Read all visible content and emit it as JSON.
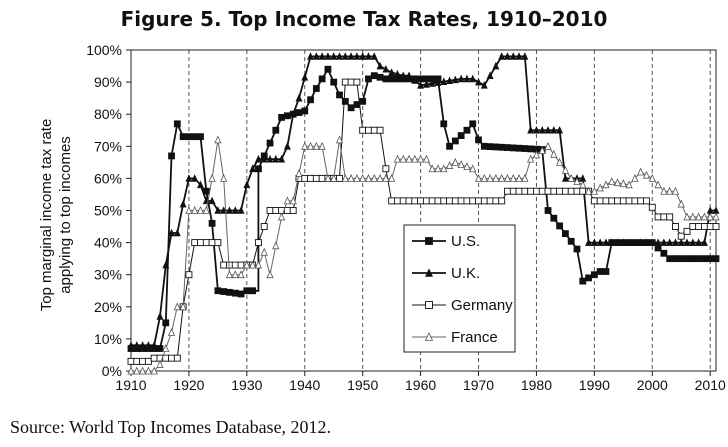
{
  "chart_data": {
    "type": "line",
    "title": "Figure 5.  Top Income Tax Rates, 1910–2010",
    "ylabel_line1": "Top marginal income tax rate",
    "ylabel_line2": "applying to top incomes",
    "xlim": [
      1910,
      2011
    ],
    "ylim": [
      0,
      100
    ],
    "x_ticks": [
      1910,
      1920,
      1930,
      1940,
      1950,
      1960,
      1970,
      1980,
      1990,
      2000,
      2010
    ],
    "y_ticks": [
      0,
      10,
      20,
      30,
      40,
      50,
      60,
      70,
      80,
      90,
      100
    ],
    "y_tick_labels": [
      "0%",
      "10%",
      "20%",
      "30%",
      "40%",
      "50%",
      "60%",
      "70%",
      "80%",
      "90%",
      "100%"
    ],
    "grid": "vertical dashed at each decade",
    "legend_position": "center-right",
    "series": [
      {
        "name": "U.S.",
        "marker": "filled-square",
        "color": "#111111",
        "points": [
          [
            1910,
            7
          ],
          [
            1913,
            7
          ],
          [
            1915,
            7
          ],
          [
            1916,
            15
          ],
          [
            1917,
            67
          ],
          [
            1918,
            77
          ],
          [
            1919,
            73
          ],
          [
            1922,
            73
          ],
          [
            1923,
            56
          ],
          [
            1924,
            46
          ],
          [
            1925,
            25
          ],
          [
            1929,
            24
          ],
          [
            1930,
            25
          ],
          [
            1932,
            25
          ],
          [
            1932,
            63
          ],
          [
            1936,
            79
          ],
          [
            1940,
            81
          ],
          [
            1942,
            88
          ],
          [
            1944,
            94
          ],
          [
            1946,
            86
          ],
          [
            1948,
            82
          ],
          [
            1950,
            84
          ],
          [
            1951,
            91
          ],
          [
            1952,
            92
          ],
          [
            1954,
            91
          ],
          [
            1963,
            91
          ],
          [
            1964,
            77
          ],
          [
            1965,
            70
          ],
          [
            1968,
            75
          ],
          [
            1969,
            77
          ],
          [
            1970,
            72
          ],
          [
            1971,
            70
          ],
          [
            1981,
            69
          ],
          [
            1982,
            50
          ],
          [
            1987,
            38
          ],
          [
            1988,
            28
          ],
          [
            1991,
            31
          ],
          [
            1992,
            31
          ],
          [
            1993,
            40
          ],
          [
            2000,
            40
          ],
          [
            2003,
            35
          ],
          [
            2011,
            35
          ]
        ]
      },
      {
        "name": "U.K.",
        "marker": "filled-triangle",
        "color": "#111111",
        "points": [
          [
            1910,
            8
          ],
          [
            1914,
            8
          ],
          [
            1915,
            17
          ],
          [
            1916,
            33
          ],
          [
            1917,
            43
          ],
          [
            1918,
            43
          ],
          [
            1919,
            52
          ],
          [
            1920,
            60
          ],
          [
            1921,
            60
          ],
          [
            1922,
            58
          ],
          [
            1923,
            53
          ],
          [
            1924,
            53
          ],
          [
            1925,
            50
          ],
          [
            1929,
            50
          ],
          [
            1930,
            58
          ],
          [
            1931,
            63
          ],
          [
            1932,
            66
          ],
          [
            1936,
            66
          ],
          [
            1937,
            70
          ],
          [
            1938,
            80
          ],
          [
            1939,
            85
          ],
          [
            1941,
            98
          ],
          [
            1952,
            98
          ],
          [
            1953,
            95
          ],
          [
            1955,
            93
          ],
          [
            1957,
            92
          ],
          [
            1958,
            92
          ],
          [
            1960,
            89
          ],
          [
            1967,
            91
          ],
          [
            1969,
            91
          ],
          [
            1971,
            89
          ],
          [
            1974,
            98
          ],
          [
            1978,
            98
          ],
          [
            1979,
            75
          ],
          [
            1984,
            75
          ],
          [
            1985,
            60
          ],
          [
            1988,
            60
          ],
          [
            1989,
            40
          ],
          [
            2009,
            40
          ],
          [
            2010,
            50
          ],
          [
            2011,
            50
          ]
        ]
      },
      {
        "name": "Germany",
        "marker": "open-square",
        "color": "#111111",
        "points": [
          [
            1910,
            3
          ],
          [
            1913,
            3
          ],
          [
            1914,
            4
          ],
          [
            1918,
            4
          ],
          [
            1919,
            20
          ],
          [
            1920,
            30
          ],
          [
            1921,
            40
          ],
          [
            1925,
            40
          ],
          [
            1926,
            33
          ],
          [
            1931,
            33
          ],
          [
            1932,
            40
          ],
          [
            1934,
            50
          ],
          [
            1938,
            50
          ],
          [
            1939,
            60
          ],
          [
            1946,
            60
          ],
          [
            1947,
            90
          ],
          [
            1949,
            90
          ],
          [
            1950,
            75
          ],
          [
            1953,
            75
          ],
          [
            1954,
            63
          ],
          [
            1955,
            53
          ],
          [
            1974,
            53
          ],
          [
            1975,
            56
          ],
          [
            1989,
            56
          ],
          [
            1990,
            53
          ],
          [
            1999,
            53
          ],
          [
            2000,
            51
          ],
          [
            2001,
            48
          ],
          [
            2003,
            48
          ],
          [
            2004,
            45
          ],
          [
            2005,
            42
          ],
          [
            2007,
            45
          ],
          [
            2011,
            45
          ]
        ]
      },
      {
        "name": "France",
        "marker": "open-triangle",
        "color": "#111111",
        "points": [
          [
            1910,
            0
          ],
          [
            1914,
            0
          ],
          [
            1915,
            2
          ],
          [
            1917,
            12
          ],
          [
            1918,
            20
          ],
          [
            1919,
            20
          ],
          [
            1920,
            50
          ],
          [
            1923,
            50
          ],
          [
            1924,
            60
          ],
          [
            1925,
            72
          ],
          [
            1926,
            60
          ],
          [
            1927,
            30
          ],
          [
            1929,
            30
          ],
          [
            1930,
            33
          ],
          [
            1932,
            33
          ],
          [
            1933,
            37
          ],
          [
            1934,
            30
          ],
          [
            1936,
            48
          ],
          [
            1937,
            53
          ],
          [
            1938,
            53
          ],
          [
            1940,
            70
          ],
          [
            1943,
            70
          ],
          [
            1944,
            60
          ],
          [
            1945,
            60
          ],
          [
            1946,
            72
          ],
          [
            1947,
            60
          ],
          [
            1955,
            60
          ],
          [
            1956,
            66
          ],
          [
            1961,
            66
          ],
          [
            1962,
            63
          ],
          [
            1964,
            63
          ],
          [
            1966,
            65
          ],
          [
            1969,
            63
          ],
          [
            1970,
            60
          ],
          [
            1978,
            60
          ],
          [
            1979,
            66
          ],
          [
            1982,
            70
          ],
          [
            1986,
            60
          ],
          [
            1988,
            58
          ],
          [
            1989,
            56
          ],
          [
            1990,
            56
          ],
          [
            1991,
            57
          ],
          [
            1993,
            59
          ],
          [
            1996,
            58
          ],
          [
            1998,
            62
          ],
          [
            2000,
            60
          ],
          [
            2002,
            56
          ],
          [
            2004,
            56
          ],
          [
            2006,
            48
          ],
          [
            2011,
            48
          ]
        ]
      }
    ]
  },
  "source_note": "Source: World Top Incomes Database, 2012."
}
